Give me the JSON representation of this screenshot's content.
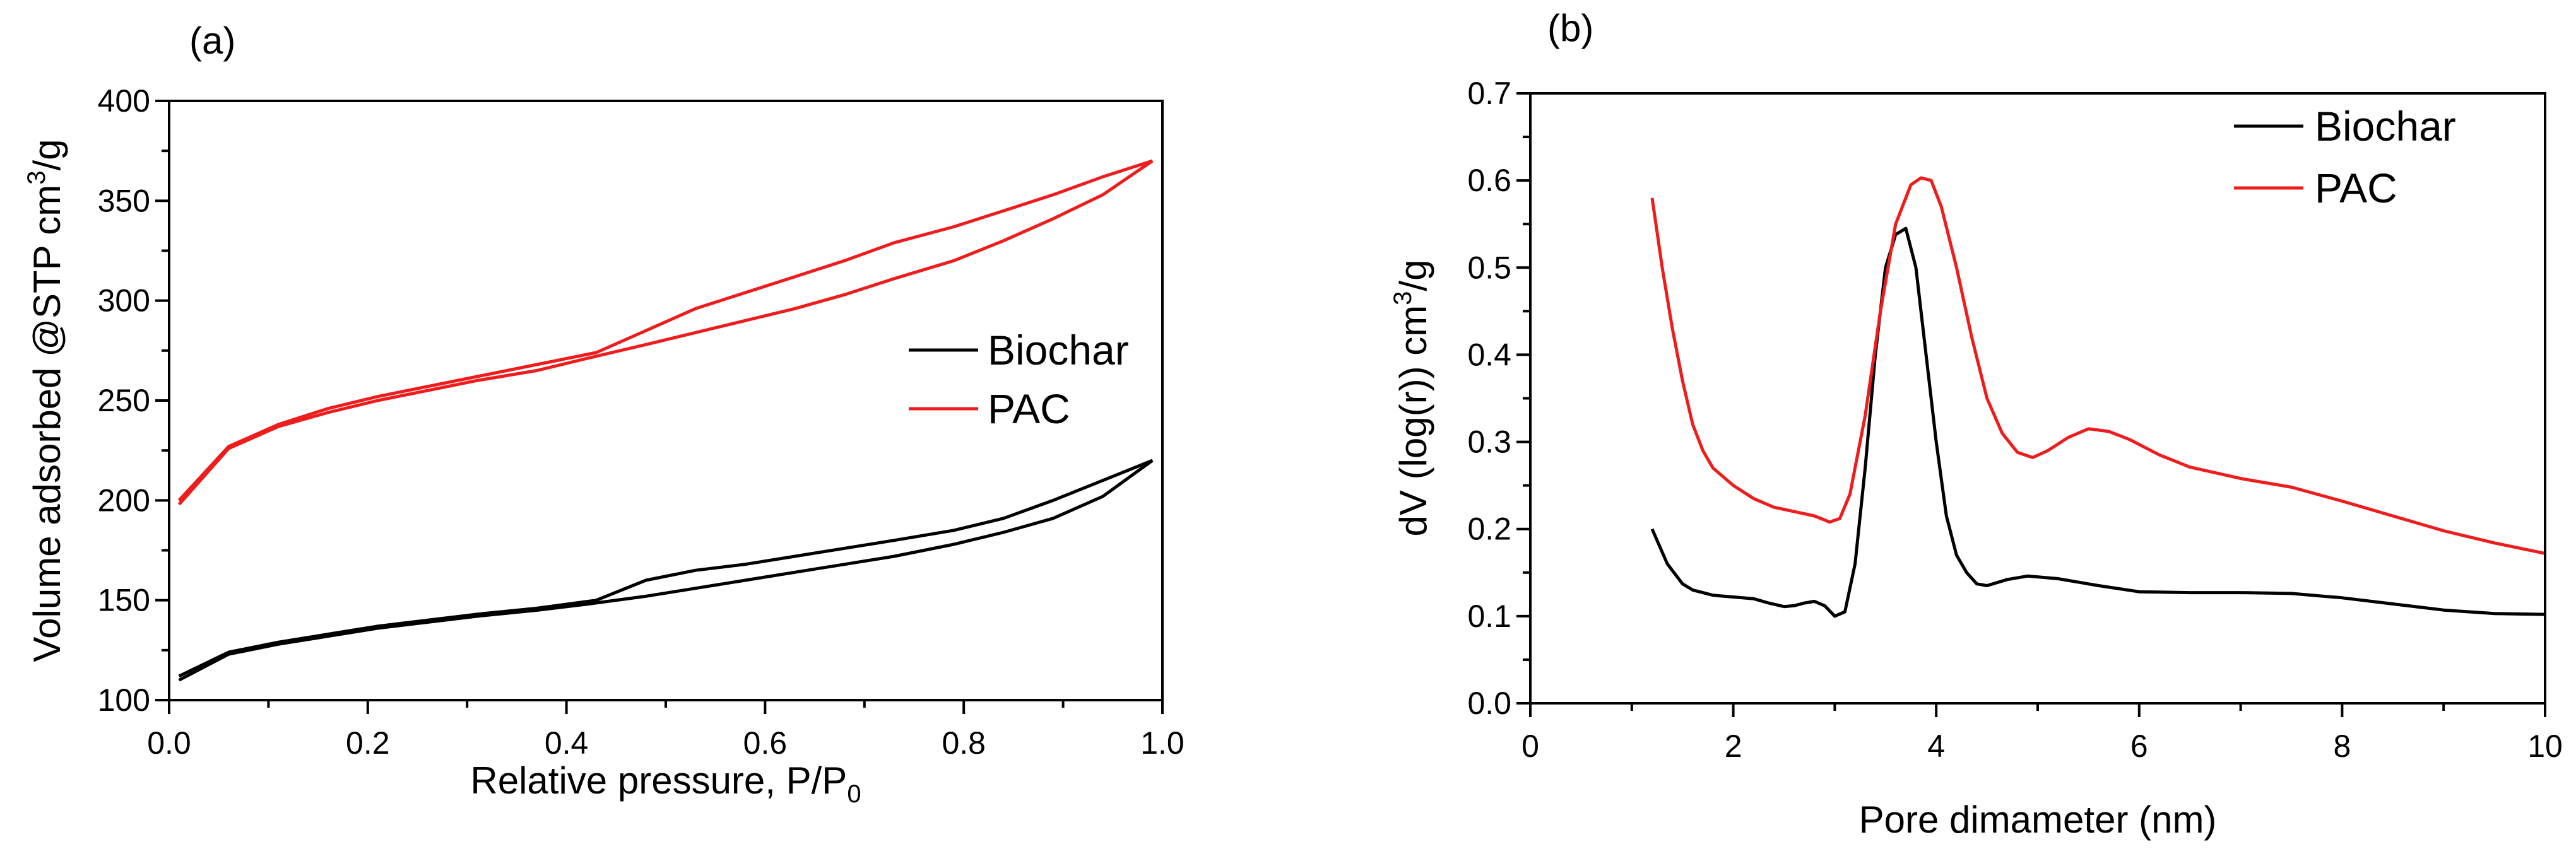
{
  "chart_data": [
    {
      "type": "line",
      "panel_label": "(a)",
      "xlabel": "Relative pressure, P/P",
      "xlabel_subscript": "0",
      "ylabel": "Volume adsorbed @STP cm",
      "ylabel_superscript": "3",
      "ylabel_suffix": "/g",
      "xlim": [
        0.0,
        1.0
      ],
      "ylim": [
        100,
        400
      ],
      "xticks": [
        "0.0",
        "0.2",
        "0.4",
        "0.6",
        "0.8",
        "1.0"
      ],
      "yticks": [
        "100",
        "150",
        "200",
        "250",
        "300",
        "350",
        "400"
      ],
      "legend_position": "center-right",
      "series": [
        {
          "name": "Biochar",
          "color": "#000000",
          "adsorption": {
            "x": [
              0.01,
              0.06,
              0.11,
              0.16,
              0.21,
              0.26,
              0.31,
              0.37,
              0.42,
              0.48,
              0.53,
              0.58,
              0.63,
              0.68,
              0.73,
              0.79,
              0.84,
              0.89,
              0.94,
              0.99
            ],
            "y": [
              110,
              123,
              128,
              132,
              136,
              139,
              142,
              145,
              148,
              152,
              156,
              160,
              164,
              168,
              172,
              178,
              184,
              191,
              202,
              220
            ]
          },
          "desorption": {
            "x": [
              0.99,
              0.94,
              0.89,
              0.84,
              0.79,
              0.73,
              0.68,
              0.63,
              0.58,
              0.53,
              0.48,
              0.43,
              0.37,
              0.31,
              0.26,
              0.21,
              0.16,
              0.11,
              0.06,
              0.01
            ],
            "y": [
              220,
              210,
              200,
              191,
              185,
              180,
              176,
              172,
              168,
              165,
              160,
              150,
              146,
              143,
              140,
              137,
              133,
              129,
              124,
              112
            ]
          }
        },
        {
          "name": "PAC",
          "color": "#ee1c1c",
          "adsorption": {
            "x": [
              0.01,
              0.06,
              0.11,
              0.16,
              0.21,
              0.26,
              0.31,
              0.37,
              0.42,
              0.48,
              0.53,
              0.58,
              0.63,
              0.68,
              0.73,
              0.79,
              0.84,
              0.89,
              0.94,
              0.99
            ],
            "y": [
              198,
              226,
              237,
              244,
              250,
              255,
              260,
              265,
              271,
              278,
              284,
              290,
              296,
              303,
              311,
              320,
              330,
              341,
              353,
              370
            ]
          },
          "desorption": {
            "x": [
              0.99,
              0.94,
              0.89,
              0.84,
              0.79,
              0.73,
              0.68,
              0.63,
              0.58,
              0.53,
              0.48,
              0.43,
              0.37,
              0.31,
              0.26,
              0.21,
              0.16,
              0.11,
              0.06,
              0.01
            ],
            "y": [
              370,
              362,
              353,
              345,
              337,
              329,
              320,
              312,
              304,
              296,
              285,
              274,
              268,
              262,
              257,
              252,
              246,
              238,
              227,
              200
            ]
          }
        }
      ]
    },
    {
      "type": "line",
      "panel_label": "(b)",
      "xlabel": "Pore dimameter (nm)",
      "ylabel": "dV (log(r)) cm",
      "ylabel_superscript": "3",
      "ylabel_suffix": "/g",
      "xlim": [
        0,
        10
      ],
      "ylim": [
        0.0,
        0.7
      ],
      "xticks": [
        "0",
        "2",
        "4",
        "6",
        "8",
        "10"
      ],
      "yticks": [
        "0.0",
        "0.1",
        "0.2",
        "0.3",
        "0.4",
        "0.5",
        "0.6",
        "0.7"
      ],
      "legend_position": "top-right",
      "series": [
        {
          "name": "Biochar",
          "color": "#000000",
          "x": [
            1.2,
            1.35,
            1.5,
            1.6,
            1.8,
            2.0,
            2.2,
            2.35,
            2.5,
            2.6,
            2.7,
            2.8,
            2.9,
            3.0,
            3.1,
            3.2,
            3.3,
            3.4,
            3.5,
            3.6,
            3.7,
            3.8,
            3.9,
            4.0,
            4.1,
            4.2,
            4.3,
            4.4,
            4.5,
            4.7,
            4.9,
            5.2,
            5.6,
            6.0,
            6.5,
            7.0,
            7.5,
            8.0,
            8.5,
            9.0,
            9.5,
            10.0
          ],
          "y": [
            0.2,
            0.16,
            0.137,
            0.13,
            0.124,
            0.122,
            0.12,
            0.115,
            0.111,
            0.112,
            0.115,
            0.117,
            0.112,
            0.1,
            0.105,
            0.16,
            0.27,
            0.4,
            0.5,
            0.538,
            0.545,
            0.5,
            0.4,
            0.3,
            0.215,
            0.17,
            0.15,
            0.137,
            0.135,
            0.142,
            0.146,
            0.143,
            0.135,
            0.128,
            0.127,
            0.127,
            0.126,
            0.121,
            0.114,
            0.107,
            0.103,
            0.102
          ]
        },
        {
          "name": "PAC",
          "color": "#ee1c1c",
          "x": [
            1.2,
            1.3,
            1.4,
            1.5,
            1.6,
            1.7,
            1.8,
            2.0,
            2.2,
            2.4,
            2.6,
            2.8,
            2.95,
            3.05,
            3.15,
            3.3,
            3.45,
            3.6,
            3.75,
            3.85,
            3.95,
            4.05,
            4.2,
            4.35,
            4.5,
            4.65,
            4.8,
            4.95,
            5.1,
            5.3,
            5.5,
            5.7,
            5.9,
            6.2,
            6.5,
            7.0,
            7.5,
            8.0,
            8.5,
            9.0,
            9.5,
            10.0
          ],
          "y": [
            0.58,
            0.5,
            0.43,
            0.37,
            0.32,
            0.29,
            0.27,
            0.25,
            0.235,
            0.225,
            0.22,
            0.215,
            0.208,
            0.212,
            0.24,
            0.33,
            0.45,
            0.55,
            0.595,
            0.603,
            0.6,
            0.57,
            0.5,
            0.42,
            0.35,
            0.31,
            0.288,
            0.282,
            0.29,
            0.305,
            0.315,
            0.312,
            0.303,
            0.285,
            0.271,
            0.258,
            0.248,
            0.232,
            0.215,
            0.198,
            0.184,
            0.172
          ]
        }
      ]
    }
  ]
}
